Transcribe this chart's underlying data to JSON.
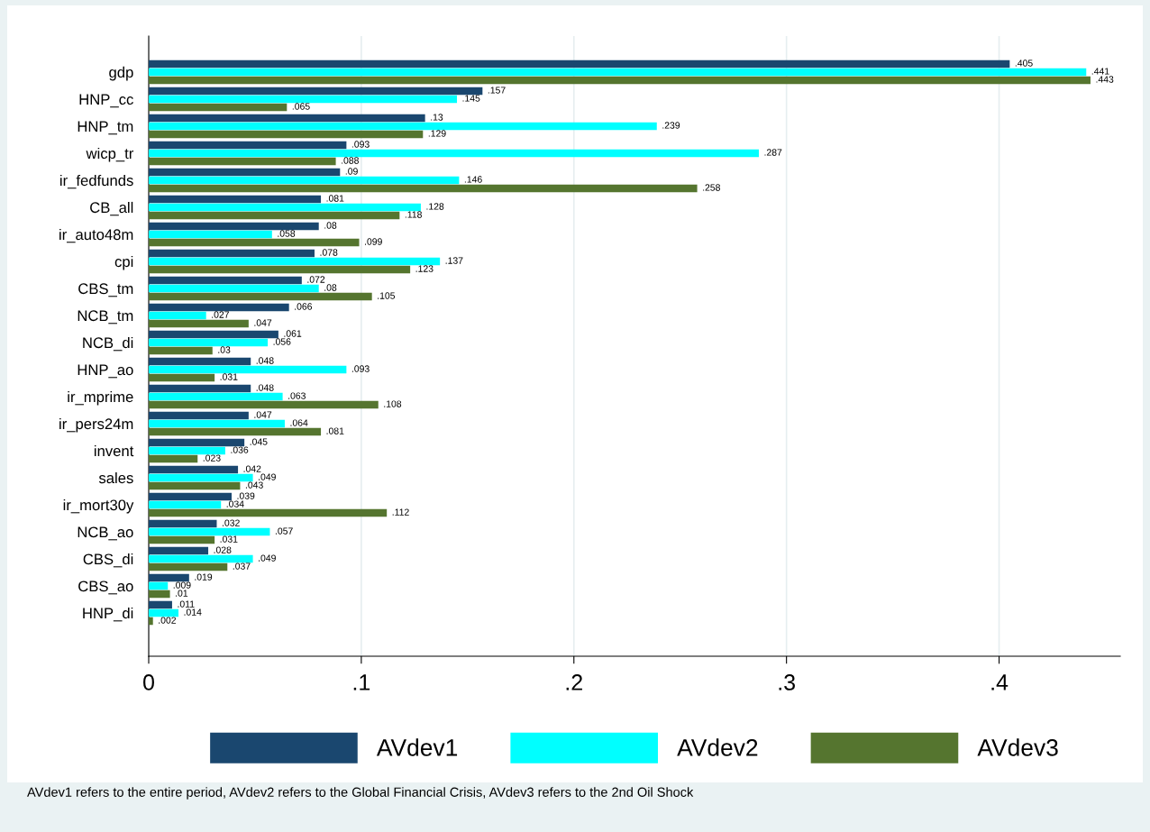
{
  "chart_data": {
    "type": "bar",
    "orientation": "horizontal",
    "categories": [
      "gdp",
      "HNP_cc",
      "HNP_tm",
      "wicp_tr",
      "ir_fedfunds",
      "CB_all",
      "ir_auto48m",
      "cpi",
      "CBS_tm",
      "NCB_tm",
      "NCB_di",
      "HNP_ao",
      "ir_mprime",
      "ir_pers24m",
      "invent",
      "sales",
      "ir_mort30y",
      "NCB_ao",
      "CBS_di",
      "CBS_ao",
      "HNP_di"
    ],
    "series": [
      {
        "name": "AVdev1",
        "color": "#1a476f",
        "values": [
          0.405,
          0.157,
          0.13,
          0.093,
          0.09,
          0.081,
          0.08,
          0.078,
          0.072,
          0.066,
          0.061,
          0.048,
          0.048,
          0.047,
          0.045,
          0.042,
          0.039,
          0.032,
          0.028,
          0.019,
          0.011
        ],
        "value_labels": [
          ".405",
          ".157",
          ".13",
          ".093",
          ".09",
          ".081",
          ".08",
          ".078",
          ".072",
          ".066",
          ".061",
          ".048",
          ".048",
          ".047",
          ".045",
          ".042",
          ".039",
          ".032",
          ".028",
          ".019",
          ".011"
        ]
      },
      {
        "name": "AVdev2",
        "color": "#00ffff",
        "values": [
          0.441,
          0.145,
          0.239,
          0.287,
          0.146,
          0.128,
          0.058,
          0.137,
          0.08,
          0.027,
          0.056,
          0.093,
          0.063,
          0.064,
          0.036,
          0.049,
          0.034,
          0.057,
          0.049,
          0.009,
          0.014
        ],
        "value_labels": [
          ".441",
          ".145",
          ".239",
          ".287",
          ".146",
          ".128",
          ".058",
          ".137",
          ".08",
          ".027",
          ".056",
          ".093",
          ".063",
          ".064",
          ".036",
          ".049",
          ".034",
          ".057",
          ".049",
          ".009",
          ".014"
        ]
      },
      {
        "name": "AVdev3",
        "color": "#55752f",
        "values": [
          0.443,
          0.065,
          0.129,
          0.088,
          0.258,
          0.118,
          0.099,
          0.123,
          0.105,
          0.047,
          0.03,
          0.031,
          0.108,
          0.081,
          0.023,
          0.043,
          0.112,
          0.031,
          0.037,
          0.01,
          0.002
        ],
        "value_labels": [
          ".443",
          ".065",
          ".129",
          ".088",
          ".258",
          ".118",
          ".099",
          ".123",
          ".105",
          ".047",
          ".03",
          ".031",
          ".108",
          ".081",
          ".023",
          ".043",
          ".112",
          ".031",
          ".037",
          ".01",
          ".002"
        ]
      }
    ],
    "xlim": [
      0,
      0.457
    ],
    "xticks": [
      0,
      {
        "value": 0.1,
        "label": ".1"
      },
      {
        "value": 0.2,
        "label": ".2"
      },
      {
        "value": 0.3,
        "label": ".3"
      },
      {
        "value": 0.4,
        "label": ".4"
      }
    ],
    "grid": "x",
    "legend": "bottom",
    "annotations": [
      "AVdev1 refers to the entire period, AVdev2 refers to the Global Financial Crisis, AVdev3 refers to the 2nd Oil Shock"
    ]
  }
}
